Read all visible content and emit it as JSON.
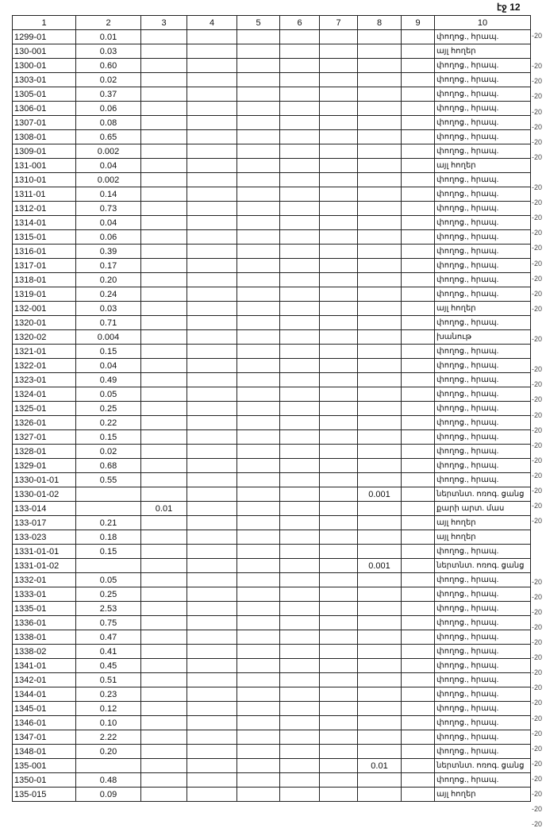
{
  "page_label": "էջ 12",
  "headers": [
    "1",
    "2",
    "3",
    "4",
    "5",
    "6",
    "7",
    "8",
    "9",
    "10"
  ],
  "rows": [
    [
      "1299-01",
      "0.01",
      "",
      "փողոց., հրապ.",
      "-20"
    ],
    [
      "130-001",
      "0.03",
      "",
      "այլ հողեր",
      ""
    ],
    [
      "1300-01",
      "0.60",
      "",
      "փողոց., հրապ.",
      "-20"
    ],
    [
      "1303-01",
      "0.02",
      "",
      "փողոց., հրապ.",
      "-20"
    ],
    [
      "1305-01",
      "0.37",
      "",
      "փողոց., հրապ.",
      "-20"
    ],
    [
      "1306-01",
      "0.06",
      "",
      "փողոց., հրապ.",
      "-20"
    ],
    [
      "1307-01",
      "0.08",
      "",
      "փողոց., հրապ.",
      "-20"
    ],
    [
      "1308-01",
      "0.65",
      "",
      "փողոց., հրապ.",
      "-20"
    ],
    [
      "1309-01",
      "0.002",
      "",
      "փողոց., հրապ.",
      "-20"
    ],
    [
      "131-001",
      "0.04",
      "",
      "այլ հողեր",
      ""
    ],
    [
      "1310-01",
      "0.002",
      "",
      "փողոց., հրապ.",
      "-20"
    ],
    [
      "1311-01",
      "0.14",
      "",
      "փողոց., հրապ.",
      "-20"
    ],
    [
      "1312-01",
      "0.73",
      "",
      "փողոց., հրապ.",
      "-20"
    ],
    [
      "1314-01",
      "0.04",
      "",
      "փողոց., հրապ.",
      "-20"
    ],
    [
      "1315-01",
      "0.06",
      "",
      "փողոց., հրապ.",
      "-20"
    ],
    [
      "1316-01",
      "0.39",
      "",
      "փողոց., հրապ.",
      "-20"
    ],
    [
      "1317-01",
      "0.17",
      "",
      "փողոց., հրապ.",
      "-20"
    ],
    [
      "1318-01",
      "0.20",
      "",
      "փողոց., հրապ.",
      "-20"
    ],
    [
      "1319-01",
      "0.24",
      "",
      "փողոց., հրապ.",
      "-20"
    ],
    [
      "132-001",
      "0.03",
      "",
      "այլ հողեր",
      ""
    ],
    [
      "1320-01",
      "0.71",
      "",
      "փողոց., հրապ.",
      "-20"
    ],
    [
      "1320-02",
      "0.004",
      "",
      "խանութ",
      ""
    ],
    [
      "1321-01",
      "0.15",
      "",
      "փողոց., հրապ.",
      "-20"
    ],
    [
      "1322-01",
      "0.04",
      "",
      "փողոց., հրապ.",
      "-20"
    ],
    [
      "1323-01",
      "0.49",
      "",
      "փողոց., հրապ.",
      "-20"
    ],
    [
      "1324-01",
      "0.05",
      "",
      "փողոց., հրապ.",
      "-20"
    ],
    [
      "1325-01",
      "0.25",
      "",
      "փողոց., հրապ.",
      "-20"
    ],
    [
      "1326-01",
      "0.22",
      "",
      "փողոց., հրապ.",
      "-20"
    ],
    [
      "1327-01",
      "0.15",
      "",
      "փողոց., հրապ.",
      "-20"
    ],
    [
      "1328-01",
      "0.02",
      "",
      "փողոց., հրապ.",
      "-20"
    ],
    [
      "1329-01",
      "0.68",
      "",
      "փողոց., հրապ.",
      "-20"
    ],
    [
      "1330-01-01",
      "0.55",
      "",
      "փողոց., հրապ.",
      "-20"
    ],
    [
      "1330-01-02",
      "",
      "0.001",
      "ներտնտ. ոռոգ. ցանց",
      "-20"
    ],
    [
      "133-014",
      "",
      "",
      "քարի արտ. մաս",
      "",
      "0.01"
    ],
    [
      "133-017",
      "0.21",
      "",
      "այլ հողեր",
      ""
    ],
    [
      "133-023",
      "0.18",
      "",
      "այլ հողեր",
      ""
    ],
    [
      "1331-01-01",
      "0.15",
      "",
      "փողոց., հրապ.",
      "-20"
    ],
    [
      "1331-01-02",
      "",
      "0.001",
      "ներտնտ. ոռոգ. ցանց",
      "-20"
    ],
    [
      "1332-01",
      "0.05",
      "",
      "փողոց., հրապ.",
      "-20"
    ],
    [
      "1333-01",
      "0.25",
      "",
      "փողոց., հրապ.",
      "-20"
    ],
    [
      "1335-01",
      "2.53",
      "",
      "փողոց., հրապ.",
      "-20"
    ],
    [
      "1336-01",
      "0.75",
      "",
      "փողոց., հրապ.",
      "-20"
    ],
    [
      "1338-01",
      "0.47",
      "",
      "փողոց., հրապ.",
      "-20"
    ],
    [
      "1338-02",
      "0.41",
      "",
      "փողոց., հրապ.",
      "-20"
    ],
    [
      "1341-01",
      "0.45",
      "",
      "փողոց., հրապ.",
      "-20"
    ],
    [
      "1342-01",
      "0.51",
      "",
      "փողոց., հրապ.",
      "-20"
    ],
    [
      "1344-01",
      "0.23",
      "",
      "փողոց., հրապ.",
      "-20"
    ],
    [
      "1345-01",
      "0.12",
      "",
      "փողոց., հրապ.",
      "-20"
    ],
    [
      "1346-01",
      "0.10",
      "",
      "փողոց., հրապ.",
      "-20"
    ],
    [
      "1347-01",
      "2.22",
      "",
      "փողոց., հրապ.",
      "-20"
    ],
    [
      "1348-01",
      "0.20",
      "",
      "փողոց., հրապ.",
      "-20"
    ],
    [
      "135-001",
      "",
      "0.01",
      "ներտնտ. ոռոգ. ցանց",
      "-20"
    ],
    [
      "1350-01",
      "0.48",
      "",
      "փողոց., հրապ.",
      "-20"
    ],
    [
      "135-015",
      "0.09",
      "",
      "այլ հողեր",
      ""
    ]
  ]
}
